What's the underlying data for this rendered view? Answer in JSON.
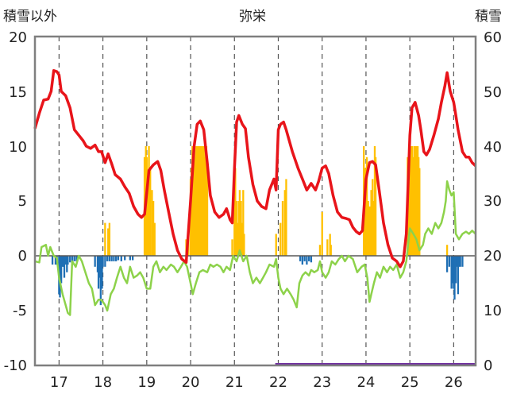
{
  "chart_data": {
    "type": "bar-line-combo",
    "title": "弥栄",
    "left_axis_label": "積雪以外",
    "right_axis_label": "積雪",
    "left_ylim": [
      -10,
      20
    ],
    "right_ylim": [
      0,
      60
    ],
    "left_ticks": [
      "20",
      "15",
      "10",
      "5",
      "0",
      "-5",
      "-10"
    ],
    "right_ticks": [
      "60",
      "50",
      "40",
      "30",
      "20",
      "10",
      "0"
    ],
    "x_ticks": [
      "17",
      "18",
      "19",
      "20",
      "21",
      "22",
      "23",
      "24",
      "25",
      "26"
    ],
    "x_range": [
      16.45,
      26.5
    ],
    "grid_vertical_dashed": true,
    "colors": {
      "red_line": "#e8141a",
      "green_line": "#8dd24a",
      "orange_bars": "#ffc000",
      "blue_bars": "#1f6fb4",
      "purple_line": "#7030a0",
      "frame": "#7f7f7f"
    },
    "red_series": [
      [
        16.45,
        11.6
      ],
      [
        16.55,
        13.0
      ],
      [
        16.65,
        14.2
      ],
      [
        16.75,
        14.3
      ],
      [
        16.82,
        15.0
      ],
      [
        16.88,
        16.9
      ],
      [
        16.95,
        16.8
      ],
      [
        17.0,
        16.5
      ],
      [
        17.05,
        15.0
      ],
      [
        17.15,
        14.6
      ],
      [
        17.25,
        13.5
      ],
      [
        17.35,
        11.5
      ],
      [
        17.45,
        11.0
      ],
      [
        17.55,
        10.5
      ],
      [
        17.62,
        10.0
      ],
      [
        17.72,
        9.8
      ],
      [
        17.82,
        10.1
      ],
      [
        17.9,
        9.5
      ],
      [
        17.97,
        9.5
      ],
      [
        18.05,
        8.5
      ],
      [
        18.12,
        9.3
      ],
      [
        18.2,
        8.4
      ],
      [
        18.28,
        7.4
      ],
      [
        18.4,
        7.0
      ],
      [
        18.5,
        6.3
      ],
      [
        18.6,
        5.7
      ],
      [
        18.7,
        4.5
      ],
      [
        18.8,
        3.8
      ],
      [
        18.88,
        3.5
      ],
      [
        18.95,
        3.8
      ],
      [
        19.05,
        7.8
      ],
      [
        19.15,
        8.3
      ],
      [
        19.25,
        8.6
      ],
      [
        19.32,
        7.8
      ],
      [
        19.4,
        6.0
      ],
      [
        19.5,
        4.0
      ],
      [
        19.6,
        2.0
      ],
      [
        19.7,
        0.5
      ],
      [
        19.8,
        -0.3
      ],
      [
        19.9,
        -0.6
      ],
      [
        20.0,
        5.0
      ],
      [
        20.08,
        10.0
      ],
      [
        20.15,
        12.0
      ],
      [
        20.22,
        12.3
      ],
      [
        20.3,
        11.5
      ],
      [
        20.38,
        8.5
      ],
      [
        20.45,
        5.5
      ],
      [
        20.55,
        4.0
      ],
      [
        20.65,
        3.5
      ],
      [
        20.75,
        3.8
      ],
      [
        20.82,
        4.3
      ],
      [
        20.9,
        3.3
      ],
      [
        20.95,
        3.0
      ],
      [
        21.0,
        8.0
      ],
      [
        21.05,
        12.2
      ],
      [
        21.1,
        12.8
      ],
      [
        21.18,
        12.0
      ],
      [
        21.25,
        11.6
      ],
      [
        21.32,
        9.0
      ],
      [
        21.42,
        6.5
      ],
      [
        21.52,
        5.0
      ],
      [
        21.62,
        4.5
      ],
      [
        21.72,
        4.3
      ],
      [
        21.8,
        6.0
      ],
      [
        21.9,
        7.0
      ],
      [
        21.95,
        6.0
      ],
      [
        22.0,
        11.5
      ],
      [
        22.05,
        12.0
      ],
      [
        22.12,
        12.2
      ],
      [
        22.18,
        11.5
      ],
      [
        22.25,
        10.5
      ],
      [
        22.32,
        9.5
      ],
      [
        22.45,
        8.0
      ],
      [
        22.55,
        7.0
      ],
      [
        22.65,
        6.0
      ],
      [
        22.75,
        6.6
      ],
      [
        22.85,
        6.0
      ],
      [
        22.92,
        6.8
      ],
      [
        23.0,
        8.0
      ],
      [
        23.08,
        8.2
      ],
      [
        23.15,
        7.5
      ],
      [
        23.25,
        5.5
      ],
      [
        23.35,
        4.0
      ],
      [
        23.45,
        3.5
      ],
      [
        23.55,
        3.4
      ],
      [
        23.62,
        3.3
      ],
      [
        23.7,
        2.6
      ],
      [
        23.78,
        2.2
      ],
      [
        23.85,
        2.0
      ],
      [
        23.92,
        2.3
      ],
      [
        24.0,
        7.0
      ],
      [
        24.08,
        8.5
      ],
      [
        24.15,
        8.6
      ],
      [
        24.22,
        8.3
      ],
      [
        24.3,
        6.0
      ],
      [
        24.4,
        3.0
      ],
      [
        24.5,
        1.0
      ],
      [
        24.6,
        -0.2
      ],
      [
        24.7,
        -0.5
      ],
      [
        24.78,
        -1.0
      ],
      [
        24.85,
        -0.5
      ],
      [
        24.92,
        2.0
      ],
      [
        25.0,
        11.0
      ],
      [
        25.05,
        13.5
      ],
      [
        25.12,
        14.0
      ],
      [
        25.2,
        12.8
      ],
      [
        25.25,
        11.5
      ],
      [
        25.32,
        9.5
      ],
      [
        25.38,
        9.2
      ],
      [
        25.45,
        9.7
      ],
      [
        25.55,
        11.0
      ],
      [
        25.65,
        12.5
      ],
      [
        25.72,
        14.0
      ],
      [
        25.8,
        15.5
      ],
      [
        25.85,
        16.7
      ],
      [
        25.92,
        15.0
      ],
      [
        26.0,
        14.0
      ],
      [
        26.05,
        12.8
      ],
      [
        26.1,
        11.5
      ],
      [
        26.2,
        9.5
      ],
      [
        26.28,
        9.0
      ],
      [
        26.35,
        9.0
      ],
      [
        26.42,
        8.5
      ],
      [
        26.5,
        8.2
      ]
    ],
    "green_series": [
      [
        16.45,
        -0.5
      ],
      [
        16.55,
        -0.6
      ],
      [
        16.6,
        0.8
      ],
      [
        16.7,
        1.0
      ],
      [
        16.75,
        0.0
      ],
      [
        16.8,
        0.8
      ],
      [
        16.88,
        0.0
      ],
      [
        16.95,
        -0.2
      ],
      [
        17.0,
        -2.0
      ],
      [
        17.08,
        -3.5
      ],
      [
        17.15,
        -4.5
      ],
      [
        17.2,
        -5.2
      ],
      [
        17.25,
        -5.4
      ],
      [
        17.3,
        -0.5
      ],
      [
        17.38,
        -1.0
      ],
      [
        17.45,
        0.0
      ],
      [
        17.52,
        -0.5
      ],
      [
        17.6,
        -1.5
      ],
      [
        17.68,
        -2.5
      ],
      [
        17.75,
        -3.0
      ],
      [
        17.82,
        -4.5
      ],
      [
        17.9,
        -4.0
      ],
      [
        17.95,
        -4.0
      ],
      [
        18.0,
        -4.2
      ],
      [
        18.05,
        -4.5
      ],
      [
        18.1,
        -5.0
      ],
      [
        18.18,
        -3.5
      ],
      [
        18.25,
        -3.0
      ],
      [
        18.32,
        -2.0
      ],
      [
        18.4,
        -1.0
      ],
      [
        18.48,
        -2.0
      ],
      [
        18.55,
        -2.5
      ],
      [
        18.62,
        -1.0
      ],
      [
        18.7,
        -2.0
      ],
      [
        18.78,
        -1.8
      ],
      [
        18.85,
        -1.5
      ],
      [
        18.92,
        -2.0
      ],
      [
        19.0,
        -3.0
      ],
      [
        19.08,
        -3.0
      ],
      [
        19.15,
        -1.0
      ],
      [
        19.22,
        -0.5
      ],
      [
        19.3,
        -1.5
      ],
      [
        19.38,
        -1.0
      ],
      [
        19.45,
        -1.3
      ],
      [
        19.55,
        -0.8
      ],
      [
        19.62,
        -1.0
      ],
      [
        19.7,
        -1.5
      ],
      [
        19.78,
        -1.0
      ],
      [
        19.85,
        -0.5
      ],
      [
        19.92,
        -1.0
      ],
      [
        20.0,
        -2.5
      ],
      [
        20.05,
        -3.5
      ],
      [
        20.12,
        -2.5
      ],
      [
        20.2,
        -1.5
      ],
      [
        20.28,
        -1.3
      ],
      [
        20.38,
        -1.5
      ],
      [
        20.45,
        -0.8
      ],
      [
        20.52,
        -1.0
      ],
      [
        20.6,
        -0.8
      ],
      [
        20.68,
        -1.0
      ],
      [
        20.75,
        -1.5
      ],
      [
        20.82,
        -1.0
      ],
      [
        20.9,
        -1.3
      ],
      [
        20.97,
        0.0
      ],
      [
        21.05,
        -0.5
      ],
      [
        21.12,
        0.5
      ],
      [
        21.2,
        -0.5
      ],
      [
        21.28,
        0.0
      ],
      [
        21.35,
        -1.5
      ],
      [
        21.42,
        -2.5
      ],
      [
        21.5,
        -2.0
      ],
      [
        21.58,
        -2.5
      ],
      [
        21.65,
        -2.0
      ],
      [
        21.72,
        -1.5
      ],
      [
        21.8,
        -0.8
      ],
      [
        21.9,
        -1.0
      ],
      [
        21.95,
        -0.3
      ],
      [
        22.0,
        -2.0
      ],
      [
        22.05,
        -3.0
      ],
      [
        22.12,
        -3.5
      ],
      [
        22.2,
        -3.0
      ],
      [
        22.28,
        -3.5
      ],
      [
        22.35,
        -4.0
      ],
      [
        22.42,
        -4.7
      ],
      [
        22.48,
        -2.5
      ],
      [
        22.55,
        -1.8
      ],
      [
        22.62,
        -1.5
      ],
      [
        22.7,
        -1.8
      ],
      [
        22.75,
        -1.3
      ],
      [
        22.82,
        -1.5
      ],
      [
        22.9,
        -1.3
      ],
      [
        22.95,
        -0.5
      ],
      [
        23.0,
        -1.5
      ],
      [
        23.08,
        -2.0
      ],
      [
        23.15,
        -1.5
      ],
      [
        23.22,
        -0.5
      ],
      [
        23.3,
        -0.8
      ],
      [
        23.38,
        -0.3
      ],
      [
        23.45,
        0.0
      ],
      [
        23.52,
        -0.5
      ],
      [
        23.6,
        0.0
      ],
      [
        23.7,
        -0.3
      ],
      [
        23.8,
        -1.5
      ],
      [
        23.9,
        -1.0
      ],
      [
        23.97,
        -0.8
      ],
      [
        24.03,
        -2.0
      ],
      [
        24.08,
        -4.2
      ],
      [
        24.12,
        -3.5
      ],
      [
        24.18,
        -2.5
      ],
      [
        24.25,
        -1.5
      ],
      [
        24.32,
        -2.0
      ],
      [
        24.4,
        -1.0
      ],
      [
        24.48,
        -1.5
      ],
      [
        24.55,
        -1.0
      ],
      [
        24.62,
        -1.3
      ],
      [
        24.7,
        -0.8
      ],
      [
        24.78,
        -2.0
      ],
      [
        24.85,
        -1.5
      ],
      [
        24.92,
        -0.5
      ],
      [
        25.0,
        2.5
      ],
      [
        25.08,
        2.0
      ],
      [
        25.15,
        1.5
      ],
      [
        25.22,
        0.5
      ],
      [
        25.3,
        1.0
      ],
      [
        25.35,
        2.0
      ],
      [
        25.42,
        2.5
      ],
      [
        25.5,
        2.0
      ],
      [
        25.58,
        3.0
      ],
      [
        25.65,
        2.5
      ],
      [
        25.72,
        3.0
      ],
      [
        25.78,
        4.0
      ],
      [
        25.82,
        5.0
      ],
      [
        25.85,
        6.8
      ],
      [
        25.9,
        6.0
      ],
      [
        25.95,
        5.5
      ],
      [
        26.0,
        5.8
      ],
      [
        26.05,
        2.0
      ],
      [
        26.12,
        1.5
      ],
      [
        26.2,
        2.0
      ],
      [
        26.28,
        2.2
      ],
      [
        26.35,
        2.0
      ],
      [
        26.42,
        2.3
      ],
      [
        26.5,
        2.0
      ]
    ],
    "orange_bars": [
      [
        18.05,
        3.0
      ],
      [
        18.12,
        2.5
      ],
      [
        18.15,
        3.0
      ],
      [
        18.95,
        9.0
      ],
      [
        18.98,
        10.0
      ],
      [
        19.0,
        9.0
      ],
      [
        19.02,
        6.0
      ],
      [
        19.05,
        10.0
      ],
      [
        19.08,
        8.0
      ],
      [
        19.12,
        6.0
      ],
      [
        19.15,
        5.0
      ],
      [
        19.18,
        3.0
      ],
      [
        19.9,
        1.5
      ],
      [
        19.95,
        2.0
      ],
      [
        20.0,
        7.0
      ],
      [
        20.02,
        8.0
      ],
      [
        20.04,
        10.0
      ],
      [
        20.06,
        9.0
      ],
      [
        20.08,
        10.0
      ],
      [
        20.1,
        10.0
      ],
      [
        20.12,
        9.0
      ],
      [
        20.14,
        10.0
      ],
      [
        20.16,
        10.0
      ],
      [
        20.18,
        10.0
      ],
      [
        20.2,
        10.0
      ],
      [
        20.22,
        10.0
      ],
      [
        20.24,
        10.0
      ],
      [
        20.26,
        9.0
      ],
      [
        20.28,
        10.0
      ],
      [
        20.3,
        10.0
      ],
      [
        20.32,
        9.0
      ],
      [
        20.34,
        10.0
      ],
      [
        20.36,
        10.0
      ],
      [
        20.38,
        8.0
      ],
      [
        20.95,
        1.5
      ],
      [
        21.0,
        7.0
      ],
      [
        21.02,
        8.0
      ],
      [
        21.05,
        5.0
      ],
      [
        21.08,
        3.0
      ],
      [
        21.1,
        5.0
      ],
      [
        21.12,
        6.0
      ],
      [
        21.15,
        5.0
      ],
      [
        21.18,
        3.0
      ],
      [
        21.2,
        6.0
      ],
      [
        21.22,
        2.0
      ],
      [
        21.95,
        2.0
      ],
      [
        22.05,
        3.0
      ],
      [
        22.1,
        5.0
      ],
      [
        22.15,
        6.0
      ],
      [
        22.18,
        7.0
      ],
      [
        22.95,
        1.0
      ],
      [
        23.0,
        4.0
      ],
      [
        23.12,
        1.5
      ],
      [
        23.18,
        2.0
      ],
      [
        23.2,
        1.0
      ],
      [
        23.95,
        10.0
      ],
      [
        23.98,
        8.0
      ],
      [
        24.02,
        9.0
      ],
      [
        24.05,
        5.0
      ],
      [
        24.08,
        4.5
      ],
      [
        24.12,
        6.0
      ],
      [
        24.15,
        7.0
      ],
      [
        24.18,
        5.0
      ],
      [
        24.2,
        10.0
      ],
      [
        24.22,
        9.0
      ],
      [
        24.95,
        9.0
      ],
      [
        24.98,
        10.0
      ],
      [
        25.0,
        8.0
      ],
      [
        25.02,
        10.0
      ],
      [
        25.05,
        10.0
      ],
      [
        25.08,
        9.0
      ],
      [
        25.1,
        10.0
      ],
      [
        25.12,
        10.0
      ],
      [
        25.15,
        10.0
      ],
      [
        25.18,
        10.0
      ],
      [
        25.2,
        9.0
      ],
      [
        25.22,
        8.0
      ],
      [
        25.85,
        1.0
      ]
    ],
    "blue_bars": [
      [
        16.85,
        -0.8
      ],
      [
        16.92,
        -0.8
      ],
      [
        16.95,
        -0.8
      ],
      [
        17.0,
        -3.5
      ],
      [
        17.02,
        -3.8
      ],
      [
        17.05,
        -2.5
      ],
      [
        17.08,
        -1.0
      ],
      [
        17.1,
        -1.0
      ],
      [
        17.12,
        -2.0
      ],
      [
        17.15,
        -0.8
      ],
      [
        17.18,
        -1.5
      ],
      [
        17.2,
        -0.8
      ],
      [
        17.25,
        -0.6
      ],
      [
        17.3,
        -0.5
      ],
      [
        17.35,
        -0.5
      ],
      [
        17.4,
        -0.5
      ],
      [
        17.82,
        -1.0
      ],
      [
        17.88,
        -1.5
      ],
      [
        17.9,
        -3.0
      ],
      [
        17.92,
        -2.0
      ],
      [
        17.95,
        -4.5
      ],
      [
        17.98,
        -3.0
      ],
      [
        18.0,
        -1.0
      ],
      [
        18.05,
        -1.0
      ],
      [
        18.1,
        -0.5
      ],
      [
        18.15,
        -0.5
      ],
      [
        18.2,
        -0.5
      ],
      [
        18.25,
        -0.5
      ],
      [
        18.3,
        -0.5
      ],
      [
        18.35,
        -0.4
      ],
      [
        18.42,
        -0.5
      ],
      [
        18.5,
        -0.4
      ],
      [
        18.62,
        -0.4
      ],
      [
        18.68,
        -0.4
      ],
      [
        22.5,
        -0.5
      ],
      [
        22.55,
        -0.8
      ],
      [
        22.6,
        -0.5
      ],
      [
        22.65,
        -0.8
      ],
      [
        22.7,
        -0.5
      ],
      [
        22.75,
        -0.6
      ],
      [
        25.85,
        -1.5
      ],
      [
        25.9,
        -1.0
      ],
      [
        25.95,
        -3.0
      ],
      [
        25.98,
        -2.5
      ],
      [
        26.0,
        -3.0
      ],
      [
        26.02,
        -4.0
      ],
      [
        26.05,
        -2.5
      ],
      [
        26.08,
        -1.0
      ],
      [
        26.1,
        -3.5
      ],
      [
        26.12,
        -1.0
      ],
      [
        26.15,
        -1.0
      ],
      [
        26.2,
        -1.0
      ]
    ],
    "purple_segment": {
      "x_start": 21.93,
      "x_end": 26.5,
      "y": -10
    }
  }
}
